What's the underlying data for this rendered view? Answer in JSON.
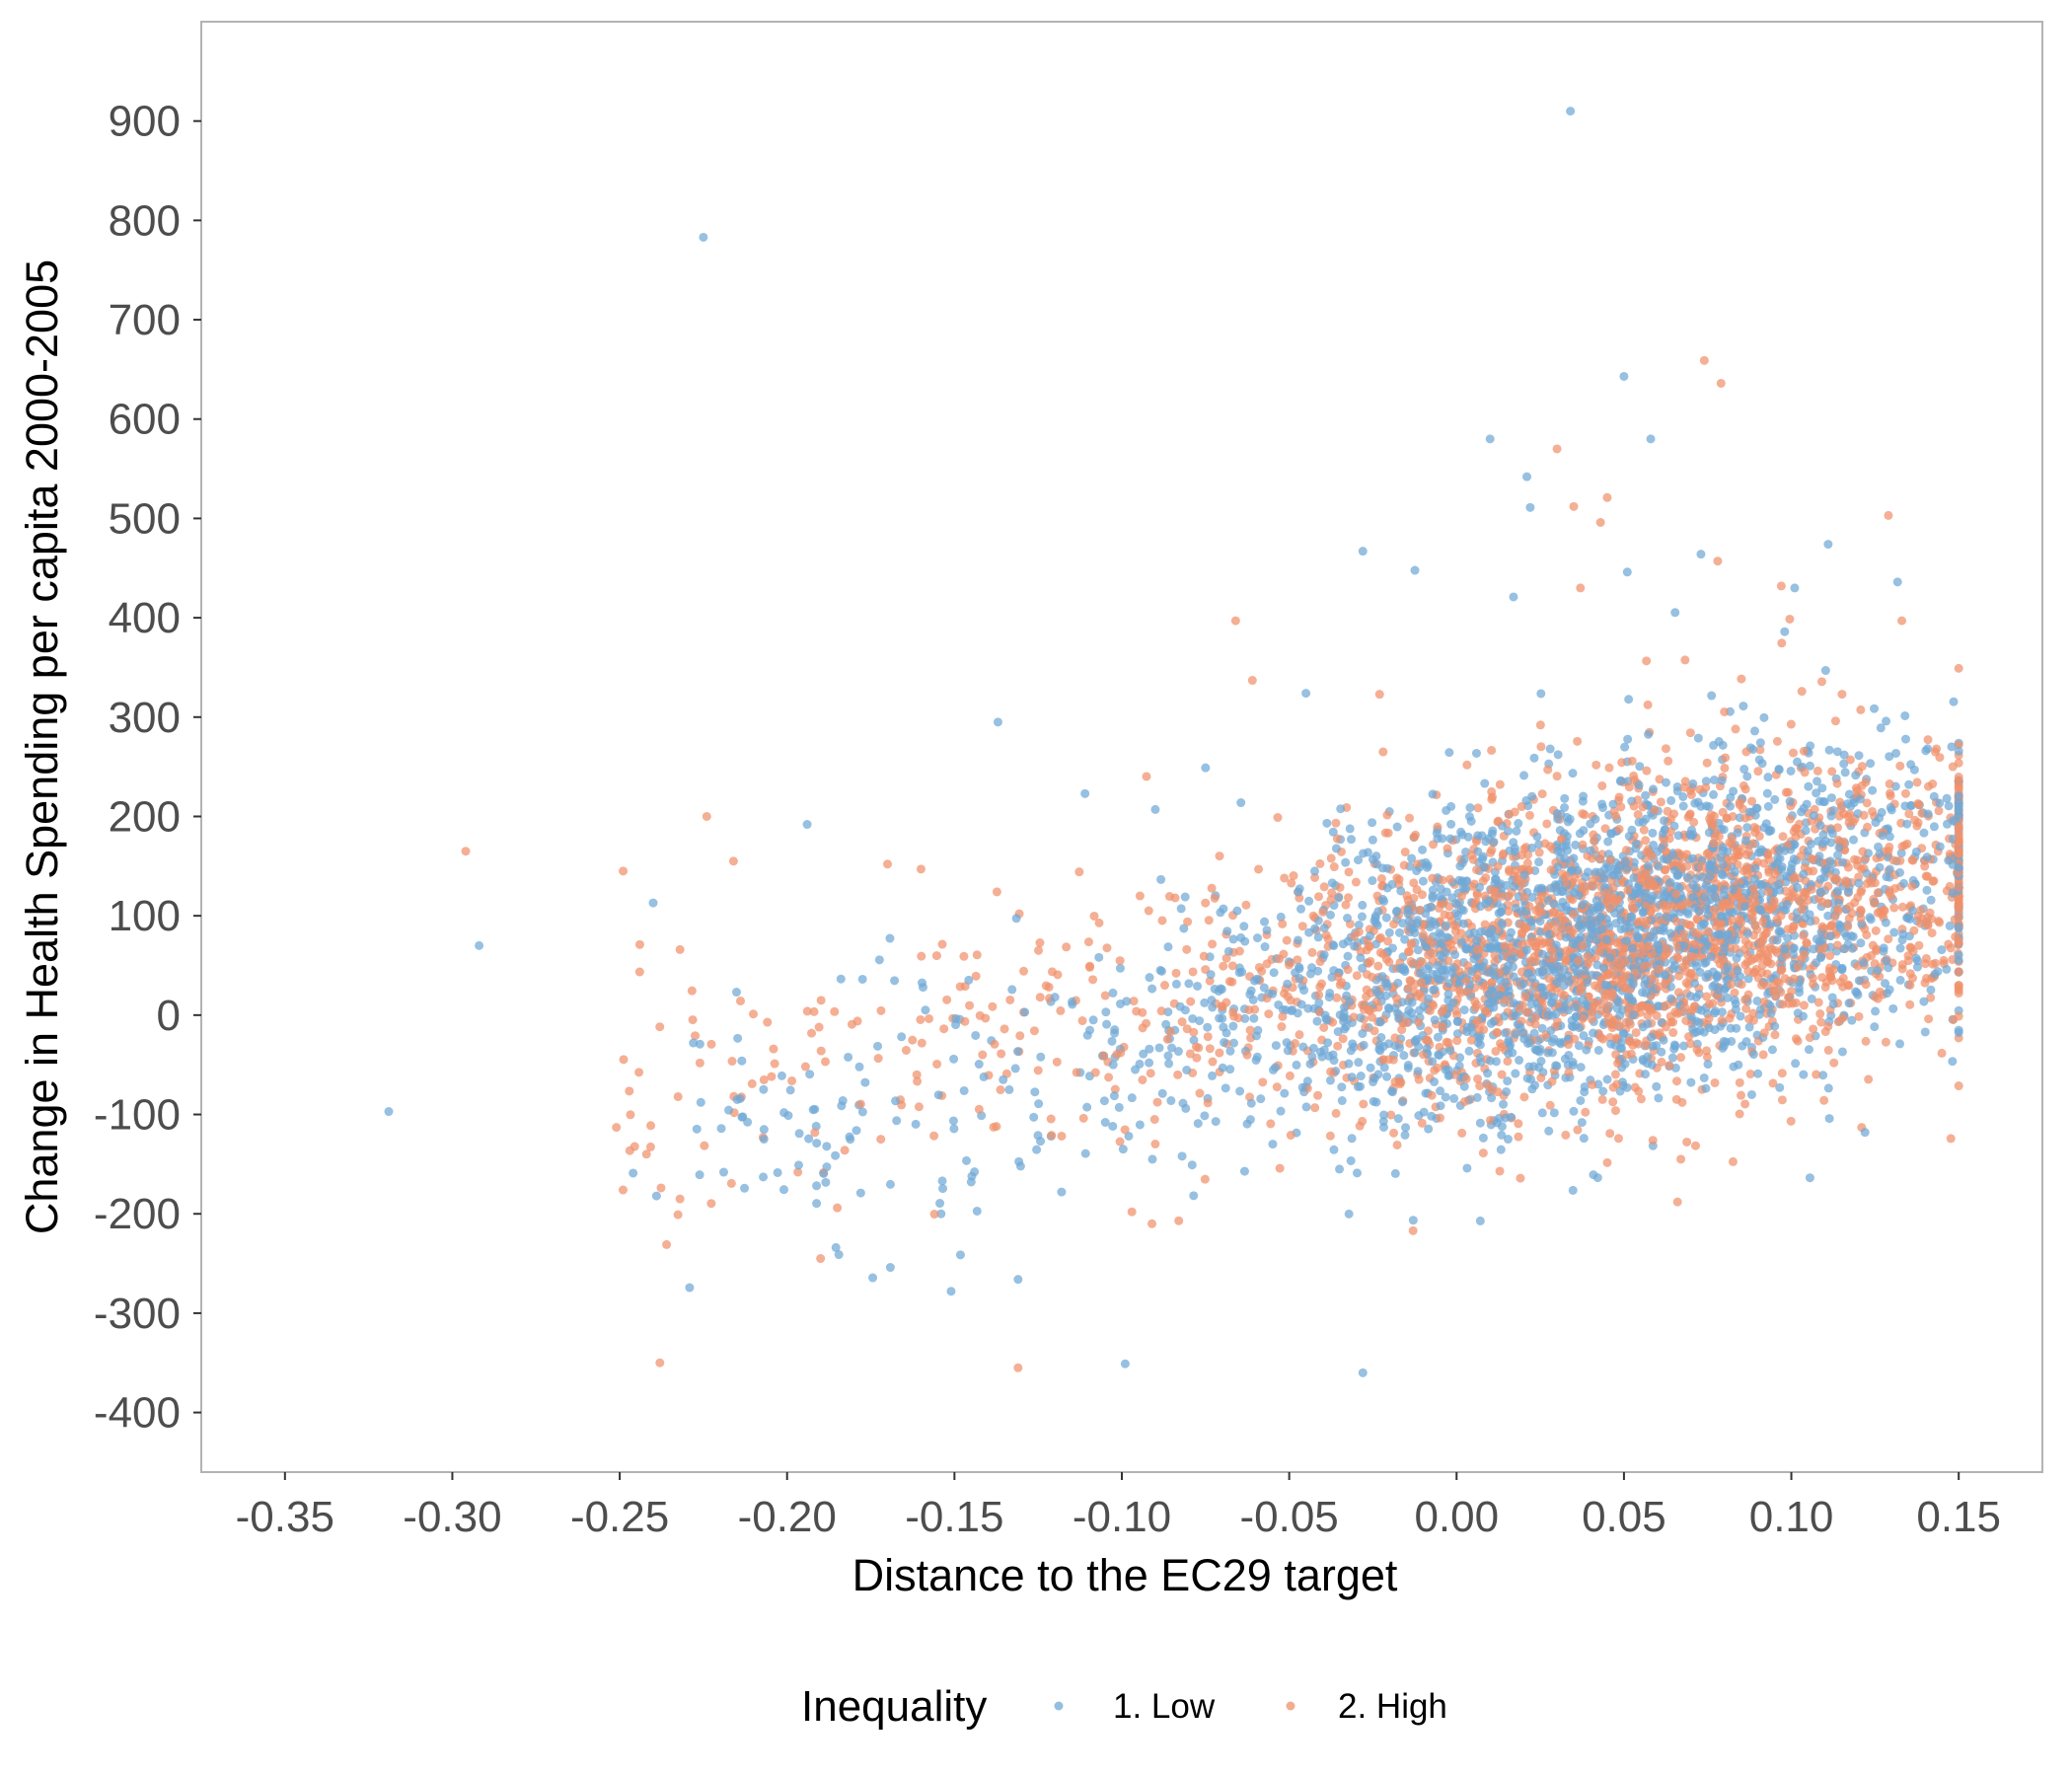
{
  "chart_data": {
    "type": "scatter",
    "title": "",
    "xlabel": "Distance to the EC29 target",
    "ylabel": "Change in Health Spending per capita 2000-2005",
    "xlim": [
      -0.375,
      0.175
    ],
    "ylim": [
      -460,
      1000
    ],
    "x_ticks": [
      -0.35,
      -0.3,
      -0.25,
      -0.2,
      -0.15,
      -0.1,
      -0.05,
      0.0,
      0.05,
      0.1,
      0.15
    ],
    "x_tick_labels": [
      "-0.35",
      "-0.30",
      "-0.25",
      "-0.20",
      "-0.15",
      "-0.10",
      "-0.05",
      "0.00",
      "0.05",
      "0.10",
      "0.15"
    ],
    "y_ticks": [
      900,
      800,
      700,
      600,
      500,
      400,
      300,
      200,
      100,
      0,
      -100,
      -200,
      -300,
      -400
    ],
    "y_tick_labels": [
      "900",
      "800",
      "700",
      "600",
      "500",
      "400",
      "300",
      "200",
      "100",
      "0",
      "-100",
      "-200",
      "-300",
      "-400"
    ],
    "grid": false,
    "legend": {
      "title": "Inequality",
      "position": "bottom"
    },
    "series": [
      {
        "name": "1. Low",
        "color": "#6fa8d6",
        "outliers": [
          [
            0.034,
            910
          ],
          [
            -0.225,
            783
          ],
          [
            0.05,
            643
          ],
          [
            0.058,
            580
          ],
          [
            0.01,
            580
          ],
          [
            0.021,
            542
          ],
          [
            0.022,
            511
          ],
          [
            0.111,
            474
          ],
          [
            -0.028,
            467
          ],
          [
            0.073,
            464
          ],
          [
            0.051,
            446
          ],
          [
            0.101,
            430
          ],
          [
            -0.137,
            295
          ],
          [
            -0.194,
            192
          ],
          [
            -0.292,
            70
          ],
          [
            -0.319,
            -97
          ],
          [
            -0.131,
            -266
          ],
          [
            -0.151,
            -278
          ],
          [
            -0.099,
            -351
          ],
          [
            -0.028,
            -360
          ],
          [
            0.122,
            -118
          ],
          [
            -0.154,
            -200
          ],
          [
            -0.111,
            223
          ],
          [
            -0.09,
            207
          ],
          [
            -0.075,
            249
          ],
          [
            -0.045,
            324
          ],
          [
            0.017,
            421
          ],
          [
            0.098,
            386
          ],
          [
            -0.24,
            113
          ],
          [
            -0.228,
            -28
          ],
          [
            -0.246,
            -159
          ],
          [
            -0.239,
            -182
          ],
          [
            -0.178,
            -179
          ],
          [
            -0.145,
            -168
          ],
          [
            -0.118,
            -178
          ],
          [
            -0.082,
            -142
          ],
          [
            -0.035,
            -155
          ],
          [
            -0.006,
            -104
          ],
          [
            0.09,
            -59
          ],
          [
            0.14,
            -17
          ]
        ],
        "cloud_model": {
          "count": 2450,
          "seed": 11,
          "x_mean": 0.045,
          "x_sd": 0.055,
          "x_range": [
            -0.23,
            0.15
          ],
          "intercept": 45,
          "slope": 720,
          "noise_sd": 78
        }
      },
      {
        "name": "2. High",
        "color": "#f0906b",
        "outliers": [
          [
            0.074,
            659
          ],
          [
            0.079,
            636
          ],
          [
            0.03,
            570
          ],
          [
            0.035,
            512
          ],
          [
            0.045,
            521
          ],
          [
            0.129,
            503
          ],
          [
            0.043,
            496
          ],
          [
            0.037,
            430
          ],
          [
            0.078,
            457
          ],
          [
            0.133,
            397
          ],
          [
            -0.066,
            397
          ],
          [
            -0.296,
            165
          ],
          [
            -0.224,
            200
          ],
          [
            -0.232,
            66
          ],
          [
            -0.216,
            155
          ],
          [
            -0.238,
            -350
          ],
          [
            -0.131,
            -355
          ],
          [
            -0.19,
            -245
          ],
          [
            -0.236,
            -231
          ],
          [
            -0.232,
            -185
          ],
          [
            -0.249,
            -176
          ],
          [
            -0.185,
            -194
          ],
          [
            -0.097,
            -198
          ],
          [
            -0.091,
            -210
          ],
          [
            -0.083,
            -207
          ],
          [
            -0.013,
            -217
          ],
          [
            0.066,
            -188
          ],
          [
            0.067,
            -145
          ],
          [
            0.121,
            -113
          ],
          [
            -0.061,
            337
          ],
          [
            -0.023,
            323
          ],
          [
            -0.16,
            147
          ],
          [
            -0.17,
            152
          ],
          [
            -0.244,
            71
          ],
          [
            -0.251,
            -113
          ],
          [
            -0.242,
            -140
          ],
          [
            -0.121,
            -121
          ],
          [
            0.097,
            432
          ],
          [
            0.143,
            265
          ],
          [
            0.149,
            172
          ]
        ],
        "cloud_model": {
          "count": 2350,
          "seed": 29,
          "x_mean": 0.055,
          "x_sd": 0.055,
          "x_range": [
            -0.25,
            0.15
          ],
          "intercept": 55,
          "slope": 500,
          "noise_sd": 74
        }
      }
    ]
  }
}
